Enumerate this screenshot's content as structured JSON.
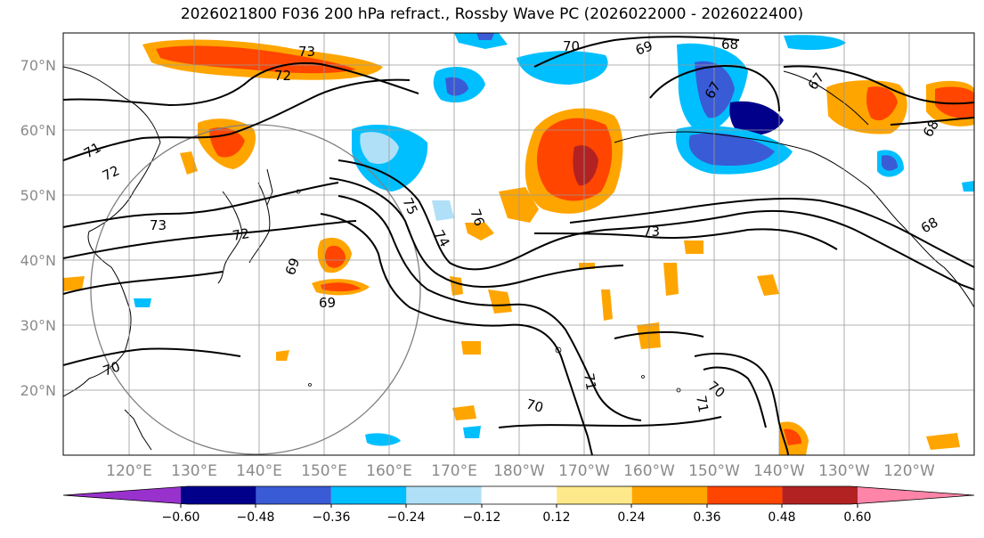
{
  "title": "2026021800 F036 200 hPa refract., Rossby Wave PC (2026022000 - 2026022400)",
  "lat_labels": [
    "70°N",
    "60°N",
    "50°N",
    "40°N",
    "30°N",
    "20°N"
  ],
  "lon_labels": [
    "120°E",
    "130°E",
    "140°E",
    "150°E",
    "160°E",
    "170°E",
    "180°W",
    "170°W",
    "160°W",
    "150°W",
    "140°W",
    "130°W",
    "120°W"
  ],
  "contour_labels": [
    "73",
    "72",
    "71",
    "72",
    "73",
    "72",
    "69",
    "69",
    "70",
    "70",
    "69",
    "68",
    "67",
    "67",
    "75",
    "76",
    "74",
    "73",
    "70",
    "71",
    "70",
    "71",
    "68",
    "68"
  ],
  "colorbar": {
    "ticks": [
      "−0.60",
      "−0.48",
      "−0.36",
      "−0.24",
      "−0.12",
      "0.12",
      "0.24",
      "0.36",
      "0.48",
      "0.60"
    ],
    "colors": [
      "#9932cc",
      "#00008b",
      "#3a5bd6",
      "#00bfff",
      "#b0e0f8",
      "#ffffff",
      "#fde98a",
      "#ffa500",
      "#ff4500",
      "#b22222",
      "#ff85a8"
    ]
  },
  "colors": {
    "positive_strong": "#ff4500",
    "positive_mid": "#ffa500",
    "positive_weak": "#fde98a",
    "negative_weak": "#b0e0f8",
    "negative_mid": "#00bfff",
    "negative_strong": "#3a5bd6",
    "negative_darker": "#00008b"
  }
}
